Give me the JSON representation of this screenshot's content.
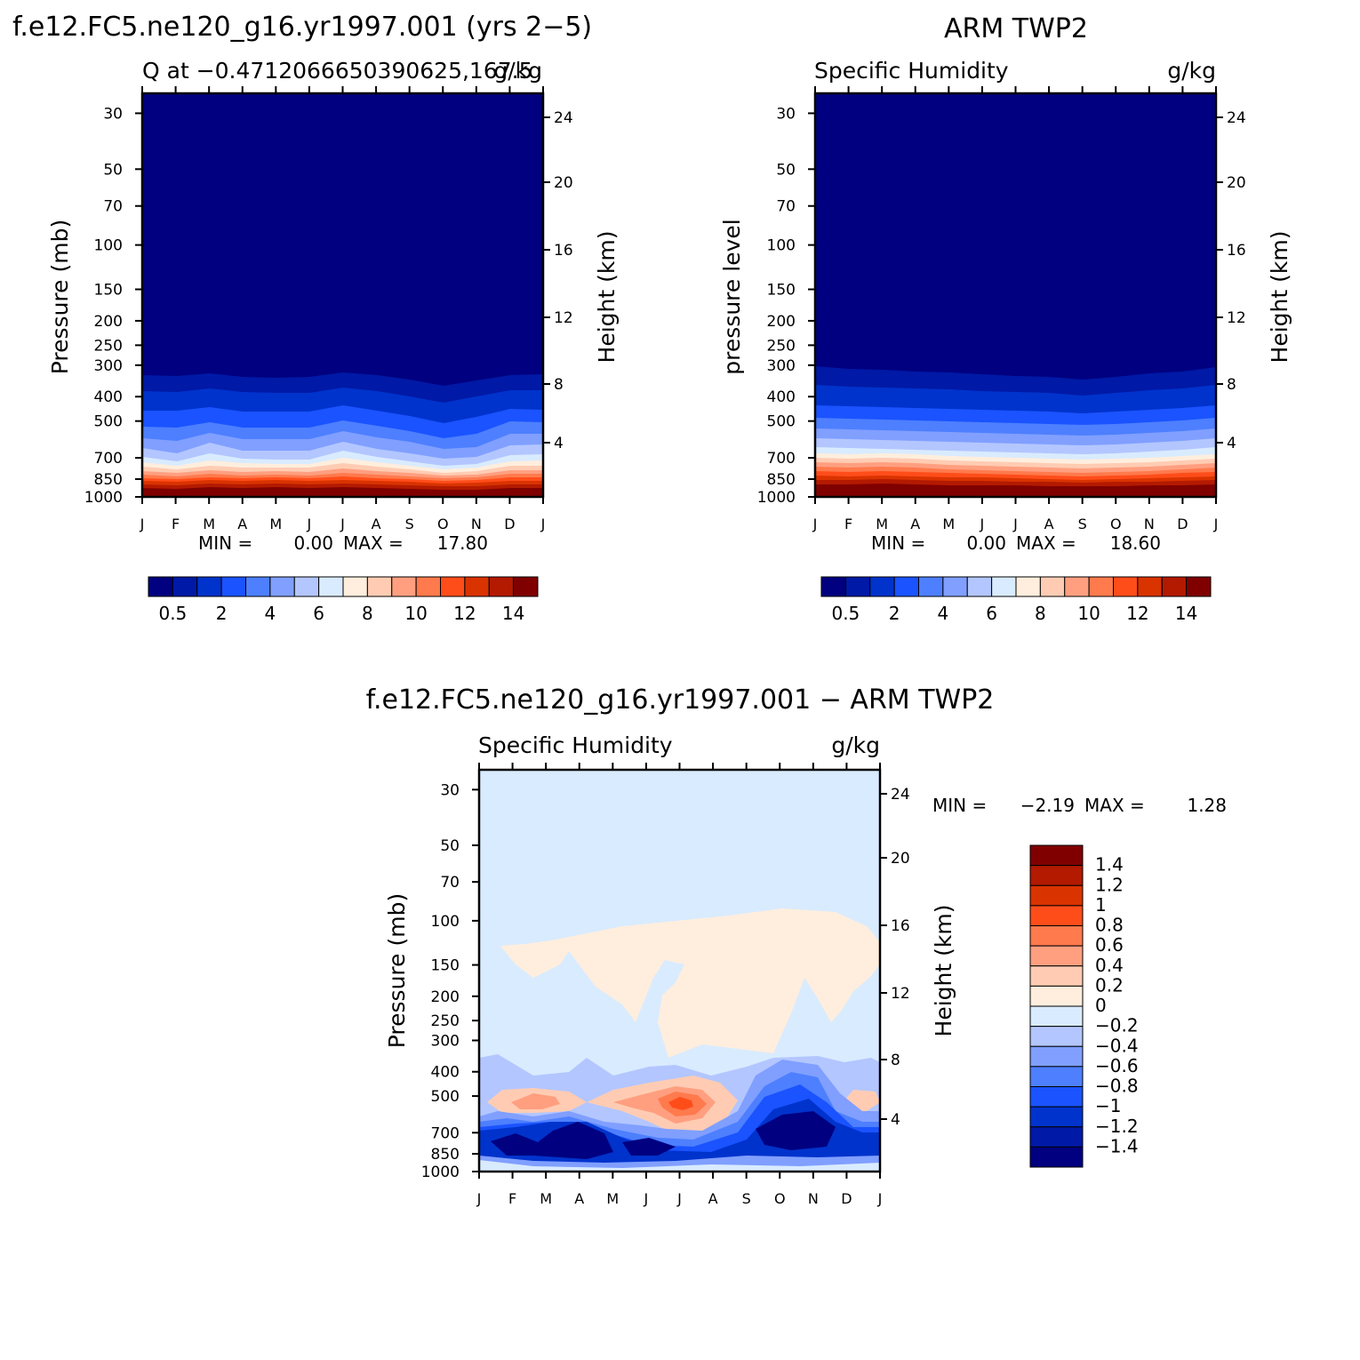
{
  "chart_data": [
    {
      "type": "heatmap",
      "panel": "top-left",
      "main_title": "f.e12.FC5.ne120_g16.yr1997.001 (yrs 2−5)",
      "left_string": "Q at −0.4712066650390625,167.5",
      "right_string": "g/kg",
      "ylabel": "Pressure (mb)",
      "ylabel_right": "Height (km)",
      "x_ticks": [
        "J",
        "F",
        "M",
        "A",
        "M",
        "J",
        "J",
        "A",
        "S",
        "O",
        "N",
        "D",
        "J"
      ],
      "y_ticks": [
        "30",
        "50",
        "70",
        "100",
        "150",
        "200",
        "250",
        "300",
        "400",
        "500",
        "700",
        "850",
        "1000"
      ],
      "y_ticks_right": [
        "24",
        "20",
        "16",
        "12",
        "8",
        "4"
      ],
      "ylim": [
        1000,
        25
      ],
      "minmax_text": {
        "min_label": "MIN =",
        "min": "0.00",
        "max_label": "MAX =",
        "max": "17.80"
      },
      "min": 0.0,
      "max": 17.8,
      "colorbar_labels": [
        "0.5",
        "2",
        "4",
        "6",
        "8",
        "10",
        "12",
        "14"
      ]
    },
    {
      "type": "heatmap",
      "panel": "top-right",
      "main_title": "ARM TWP2",
      "left_string": "Specific Humidity",
      "right_string": "g/kg",
      "ylabel": "pressure level",
      "ylabel_right": "Height (km)",
      "x_ticks": [
        "J",
        "F",
        "M",
        "A",
        "M",
        "J",
        "J",
        "A",
        "S",
        "O",
        "N",
        "D",
        "J"
      ],
      "y_ticks": [
        "30",
        "50",
        "70",
        "100",
        "150",
        "200",
        "250",
        "300",
        "400",
        "500",
        "700",
        "850",
        "1000"
      ],
      "y_ticks_right": [
        "24",
        "20",
        "16",
        "12",
        "8",
        "4"
      ],
      "ylim": [
        1000,
        25
      ],
      "minmax_text": {
        "min_label": "MIN =",
        "min": "0.00",
        "max_label": "MAX =",
        "max": "18.60"
      },
      "min": 0.0,
      "max": 18.6,
      "colorbar_labels": [
        "0.5",
        "2",
        "4",
        "6",
        "8",
        "10",
        "12",
        "14"
      ]
    },
    {
      "type": "heatmap",
      "panel": "bottom",
      "main_title": "f.e12.FC5.ne120_g16.yr1997.001 − ARM TWP2",
      "left_string": "Specific Humidity",
      "right_string": "g/kg",
      "ylabel": "Pressure (mb)",
      "ylabel_right": "Height (km)",
      "x_ticks": [
        "J",
        "F",
        "M",
        "A",
        "M",
        "J",
        "J",
        "A",
        "S",
        "O",
        "N",
        "D",
        "J"
      ],
      "y_ticks": [
        "30",
        "50",
        "70",
        "100",
        "150",
        "200",
        "250",
        "300",
        "400",
        "500",
        "700",
        "850",
        "1000"
      ],
      "y_ticks_right": [
        "24",
        "20",
        "16",
        "12",
        "8",
        "4"
      ],
      "ylim": [
        1000,
        25
      ],
      "minmax_text": {
        "min_label": "MIN =",
        "min": "−2.19",
        "max_label": "MAX =",
        "max": "1.28"
      },
      "min": -2.19,
      "max": 1.28,
      "colorbar_labels": [
        "1.4",
        "1.2",
        "1",
        "0.8",
        "0.6",
        "0.4",
        "0.2",
        "0",
        "−0.2",
        "−0.4",
        "−0.6",
        "−0.8",
        "−1",
        "−1.2",
        "−1.4"
      ]
    }
  ],
  "palette": [
    "#000080",
    "#0019a6",
    "#0033cc",
    "#1a53ff",
    "#4d7fff",
    "#809fff",
    "#b3c6ff",
    "#d9ebff",
    "#ffeedd",
    "#ffccb3",
    "#ff9f80",
    "#ff7a4d",
    "#ff4d1a",
    "#d93300",
    "#b31a00",
    "#800000"
  ]
}
